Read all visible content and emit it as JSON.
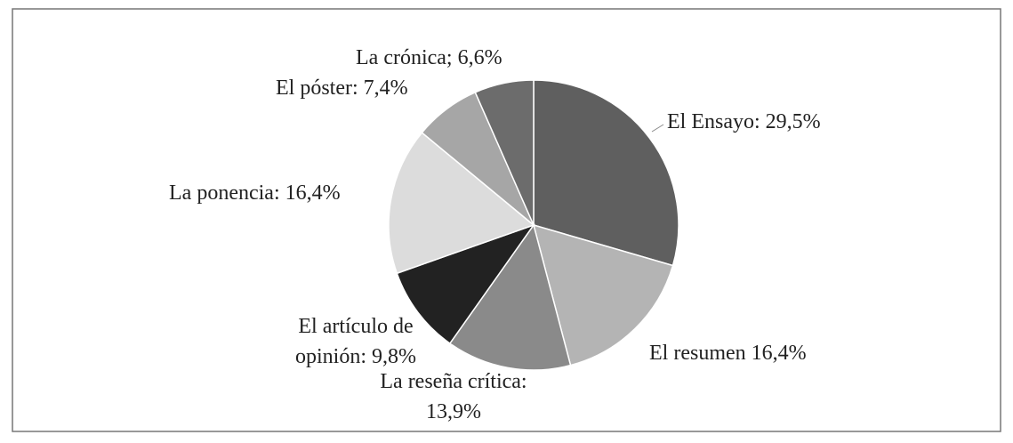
{
  "chart_data": {
    "type": "pie",
    "values": [
      29.5,
      16.4,
      13.9,
      9.8,
      16.4,
      7.4,
      6.6
    ],
    "value_labels": [
      "El Ensayo: 29,5%",
      "El resumen 16,4%",
      "La reseña crítica:\n13,9%",
      "El artículo de\nopinión: 9,8%",
      "La ponencia: 16,4%",
      "El póster: 7,4%",
      "La crónica; 6,6%"
    ],
    "colors": [
      "#5f5f5f",
      "#b4b4b4",
      "#8a8a8a",
      "#222222",
      "#dcdcdc",
      "#a6a6a6",
      "#6c6c6c"
    ]
  }
}
